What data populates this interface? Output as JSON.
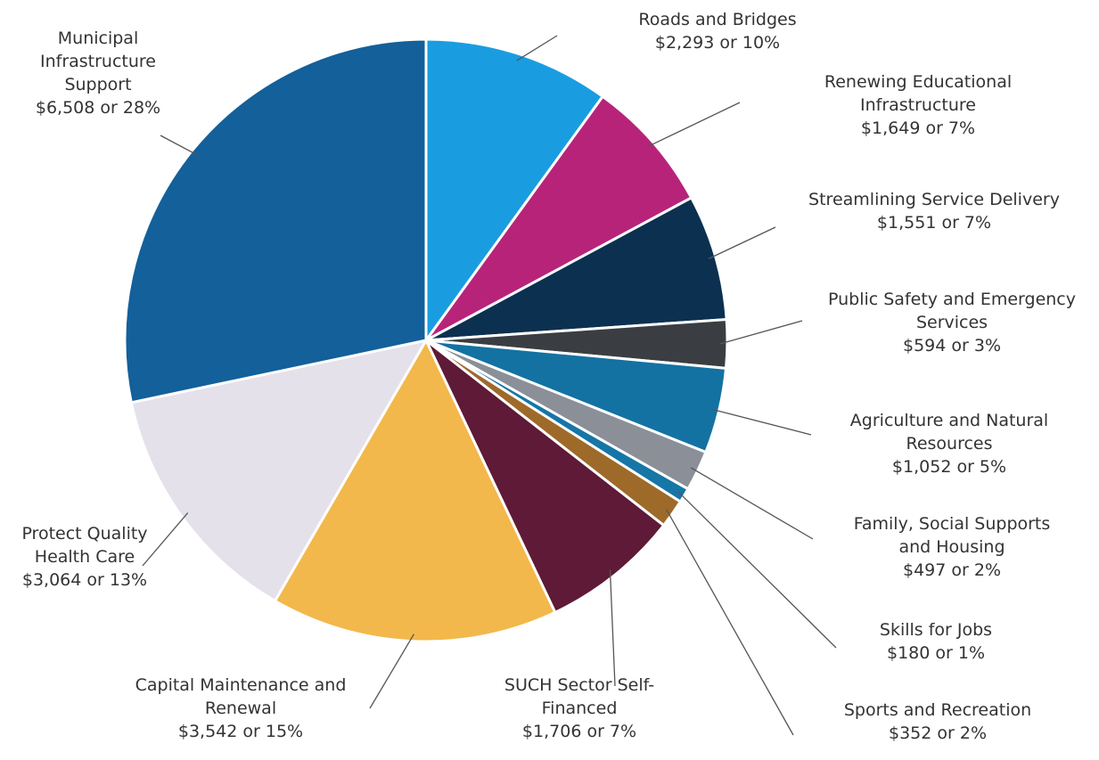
{
  "chart_data": {
    "type": "pie",
    "categories": [
      "Roads and Bridges",
      "Renewing Educational Infrastructure",
      "Streamlining Service Delivery",
      "Public Safety and Emergency Services",
      "Agriculture and Natural Resources",
      "Family, Social Supports and Housing",
      "Skills for Jobs",
      "Sports and Recreation",
      "SUCH Sector Self-Financed",
      "Capital Maintenance and Renewal",
      "Protect Quality Health Care",
      "Municipal Infrastructure Support"
    ],
    "values": [
      2293,
      1649,
      1551,
      594,
      1052,
      497,
      180,
      352,
      1706,
      3542,
      3064,
      6508
    ],
    "value_labels": [
      "$2,293 or 10%",
      "$1,649 or 7%",
      "$1,551 or 7%",
      "$594 or 3%",
      "$1,052 or 5%",
      "$497 or 2%",
      "$180 or 1%",
      "$352 or 2%",
      "$1,706 or 7%",
      "$3,542 or 15%",
      "$3,064 or 13%",
      "$6,508 or 28%"
    ],
    "colors": [
      "#1a9de0",
      "#b8237a",
      "#0c3050",
      "#3a3e42",
      "#1372a2",
      "#8a8f98",
      "#1676a6",
      "#9e6a2a",
      "#5e1a36",
      "#f2b84b",
      "#e4e1ea",
      "#13609a"
    ]
  }
}
